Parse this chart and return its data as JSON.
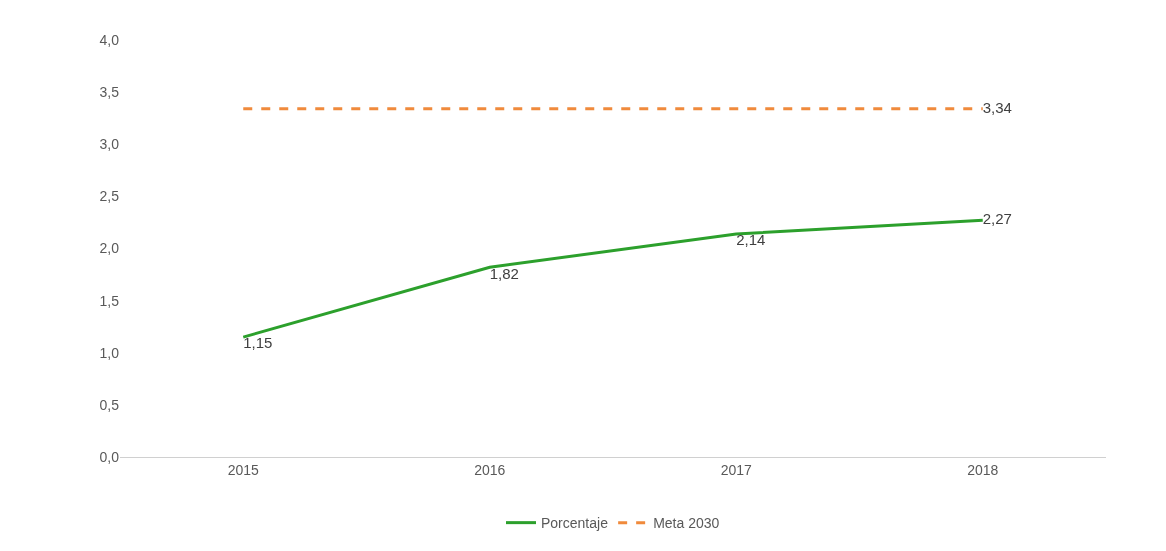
{
  "chart_data": {
    "type": "line",
    "categories": [
      "2015",
      "2016",
      "2017",
      "2018"
    ],
    "series": [
      {
        "name": "Porcentaje",
        "color": "#2ca02c",
        "values": [
          1.15,
          1.82,
          2.14,
          2.27
        ],
        "value_labels": [
          "1,15",
          "1,82",
          "2,14",
          "2,27"
        ],
        "line_style": "solid"
      },
      {
        "name": "Meta 2030",
        "color": "#f08a3c",
        "values": [
          3.34,
          3.34,
          3.34,
          3.34
        ],
        "value_labels": [
          null,
          null,
          null,
          "3,34"
        ],
        "line_style": "dashed"
      }
    ],
    "ylim": [
      0,
      4
    ],
    "yticks": [
      {
        "value": 0,
        "label": "0,0"
      },
      {
        "value": 0.5,
        "label": "0,5"
      },
      {
        "value": 1,
        "label": "1,0"
      },
      {
        "value": 1.5,
        "label": "1,5"
      },
      {
        "value": 2,
        "label": "2,0"
      },
      {
        "value": 2.5,
        "label": "2,5"
      },
      {
        "value": 3,
        "label": "3,0"
      },
      {
        "value": 3.5,
        "label": "3,5"
      },
      {
        "value": 4,
        "label": "4,0"
      }
    ],
    "grid": false,
    "legend": "bottom",
    "marker": "none"
  }
}
